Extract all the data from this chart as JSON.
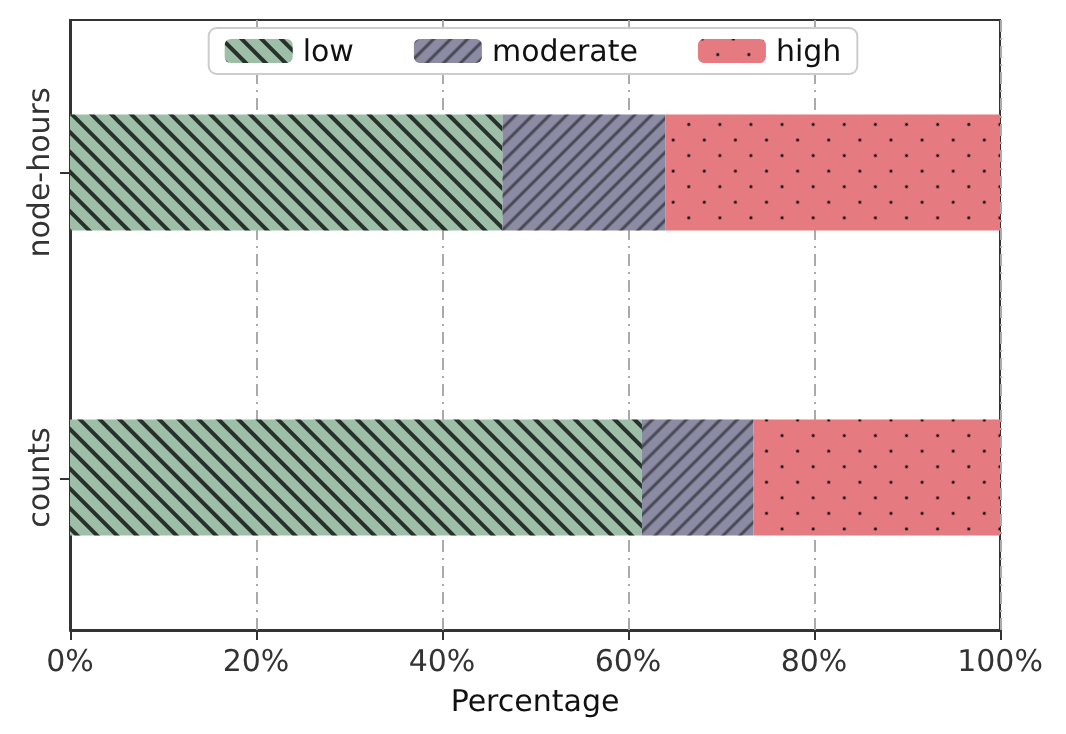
{
  "chart_data": {
    "type": "bar",
    "orientation": "horizontal",
    "stacked": true,
    "xlabel": "Percentage",
    "categories": [
      "node-hours",
      "counts"
    ],
    "series": [
      {
        "name": "low",
        "color": "#9dbfa8",
        "values": [
          46.5,
          61.5
        ]
      },
      {
        "name": "moderate",
        "color": "#8b8ba3",
        "values": [
          17.5,
          12
        ]
      },
      {
        "name": "high",
        "color": "#e57a80",
        "values": [
          36,
          26.5
        ]
      }
    ],
    "xlim": [
      0,
      100
    ],
    "xticks": [
      {
        "value": 0,
        "label": "0%"
      },
      {
        "value": 20,
        "label": "20%"
      },
      {
        "value": 40,
        "label": "40%"
      },
      {
        "value": 60,
        "label": "60%"
      },
      {
        "value": 80,
        "label": "80%"
      },
      {
        "value": 100,
        "label": "100%"
      }
    ],
    "grid": "x",
    "legend": "top"
  }
}
